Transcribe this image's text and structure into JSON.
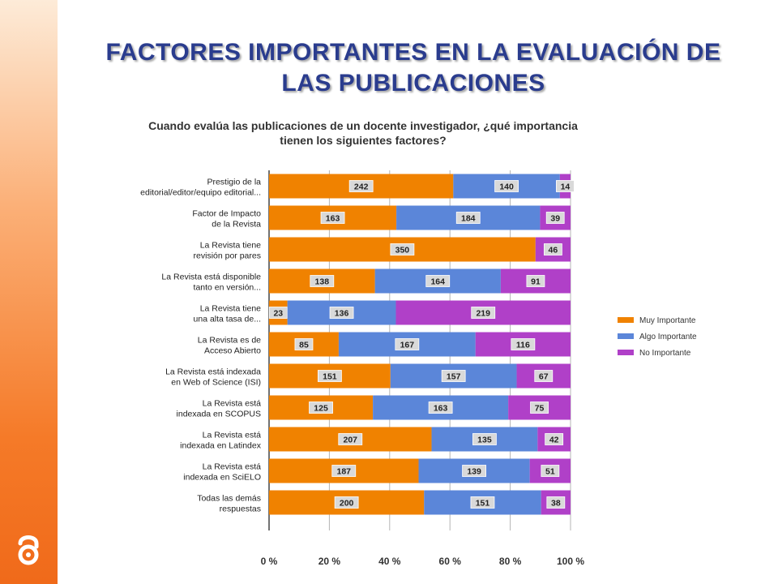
{
  "title": "FACTORES IMPORTANTES EN LA EVALUACIÓN DE LAS PUBLICACIONES",
  "chart_data": {
    "type": "bar",
    "orientation": "horizontal",
    "stacked": "percent",
    "title": "Cuando evalúa las publicaciones de un docente investigador, ¿qué importancia tienen los siguientes factores?",
    "categories": [
      "Prestigio de la editorial/editor/equipo editorial...",
      "Factor de Impacto de la Revista",
      "La Revista tiene revisión por pares",
      "La Revista está disponible tanto en versión...",
      "La Revista tiene una alta tasa de...",
      "La Revista es de Acceso Abierto",
      "La Revista está indexada en Web of Science (ISI)",
      "La Revista está indexada en SCOPUS",
      "La Revista está indexada en Latindex",
      "La Revista está indexada en SciELO",
      "Todas las demás respuestas"
    ],
    "category_lines": [
      [
        "Prestigio de la",
        "editorial/editor/equipo editorial..."
      ],
      [
        "Factor de Impacto",
        "de la Revista"
      ],
      [
        "La Revista tiene",
        "revisión por pares"
      ],
      [
        "La Revista está disponible",
        "tanto en versión..."
      ],
      [
        "La Revista tiene",
        "una alta tasa de..."
      ],
      [
        "La Revista es de",
        "Acceso Abierto"
      ],
      [
        "La Revista está indexada",
        "en Web of Science (ISI)"
      ],
      [
        "La Revista está",
        "indexada en SCOPUS"
      ],
      [
        "La Revista está",
        "indexada en Latindex"
      ],
      [
        "La Revista está",
        "indexada en SciELO"
      ],
      [
        "Todas las demás",
        "respuestas"
      ]
    ],
    "series": [
      {
        "name": "Muy Importante",
        "color": "#f08200",
        "values": [
          242,
          163,
          350,
          138,
          23,
          85,
          151,
          125,
          207,
          187,
          200
        ]
      },
      {
        "name": "Algo Importante",
        "color": "#5b86d9",
        "values": [
          140,
          184,
          null,
          164,
          136,
          167,
          157,
          163,
          135,
          139,
          151
        ]
      },
      {
        "name": "No Importante",
        "color": "#b040c8",
        "values": [
          14,
          39,
          46,
          91,
          219,
          116,
          67,
          75,
          42,
          51,
          38
        ]
      }
    ],
    "xticks": [
      "0 %",
      "20 %",
      "40 %",
      "60 %",
      "80 %",
      "100 %"
    ],
    "xlim": [
      0,
      100
    ],
    "grid": true,
    "legend_position": "right"
  }
}
